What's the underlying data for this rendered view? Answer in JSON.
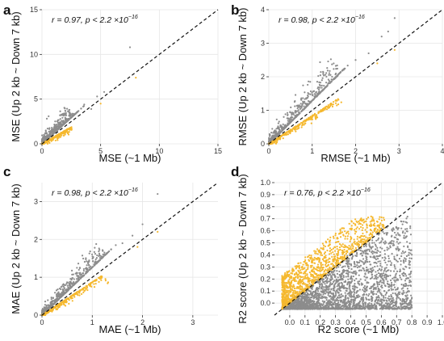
{
  "chart_data": [
    {
      "panel_label": "a",
      "type": "scatter",
      "xlabel": "MSE (~1 Mb)",
      "ylabel": "MSE (Up 2 kb ~ Down 7 kb)",
      "xlim": [
        0,
        15
      ],
      "ylim": [
        0,
        15
      ],
      "xticks": [
        "0",
        "5",
        "10",
        "15"
      ],
      "yticks": [
        "0",
        "5",
        "10",
        "15"
      ],
      "annotation": {
        "main": "r = 0.97, p < 2.2 ×10",
        "sup": "−16"
      },
      "reference_line": "dashed diagonal y = x",
      "grid": true,
      "series": [
        {
          "color": "#8c8c8c",
          "cloud_end": [
            2.8,
            3.3
          ],
          "spread": 0.55,
          "outliers": [
            [
              7.5,
              10.8
            ],
            [
              4.7,
              5.3
            ],
            [
              4.2,
              3.9
            ],
            [
              5.3,
              5.8
            ],
            [
              3.6,
              4.4
            ]
          ]
        },
        {
          "color": "#f5b82e",
          "cloud_end": [
            2.5,
            1.9
          ],
          "spread": 0.25,
          "outliers": [
            [
              8.0,
              7.4
            ],
            [
              5.0,
              4.5
            ]
          ]
        }
      ]
    },
    {
      "panel_label": "b",
      "type": "scatter",
      "xlabel": "RMSE (~1 Mb)",
      "ylabel": "RMSE (Up 2 kb ~ Down 7 kb)",
      "xlim": [
        0,
        4
      ],
      "ylim": [
        0,
        4
      ],
      "xticks": [
        "0",
        "1",
        "2",
        "3",
        "4"
      ],
      "yticks": [
        "0",
        "1",
        "2",
        "3",
        "4"
      ],
      "annotation": {
        "main": "r = 0.98, p < 2.2 ×10",
        "sup": "−16"
      },
      "reference_line": "dashed diagonal y = x",
      "grid": true,
      "series": [
        {
          "color": "#8c8c8c",
          "cloud_end": [
            1.7,
            2.2
          ],
          "spread": 0.22,
          "outliers": [
            [
              2.9,
              3.75
            ],
            [
              2.75,
              3.35
            ],
            [
              2.3,
              2.7
            ],
            [
              2.6,
              3.2
            ],
            [
              2.0,
              2.5
            ]
          ]
        },
        {
          "color": "#f5b82e",
          "cloud_end": [
            1.6,
            1.35
          ],
          "spread": 0.1,
          "outliers": [
            [
              2.9,
              2.8
            ],
            [
              2.5,
              2.4
            ]
          ]
        }
      ]
    },
    {
      "panel_label": "c",
      "type": "scatter",
      "xlabel": "MAE (~1 Mb)",
      "ylabel": "MAE (Up 2 kb ~ Down 7 kb)",
      "xlim": [
        0,
        3.5
      ],
      "ylim": [
        0,
        3.5
      ],
      "xticks": [
        "0",
        "1",
        "2",
        "3"
      ],
      "yticks": [
        "0",
        "1",
        "2",
        "3"
      ],
      "annotation": {
        "main": "r = 0.98, p < 2.2 ×10",
        "sup": "−16"
      },
      "reference_line": "dashed diagonal y = x",
      "grid": true,
      "series": [
        {
          "color": "#8c8c8c",
          "cloud_end": [
            1.3,
            1.65
          ],
          "spread": 0.16,
          "outliers": [
            [
              2.3,
              3.2
            ],
            [
              1.8,
              2.1
            ],
            [
              2.0,
              2.4
            ],
            [
              1.6,
              1.9
            ]
          ]
        },
        {
          "color": "#f5b82e",
          "cloud_end": [
            1.2,
            1.05
          ],
          "spread": 0.08,
          "outliers": [
            [
              2.3,
              2.2
            ],
            [
              1.9,
              1.8
            ]
          ]
        }
      ]
    },
    {
      "panel_label": "d",
      "type": "scatter",
      "xlabel": "R2 score (~1 Mb)",
      "ylabel": "R2 score (Up 2 kb ~ Down 7 kb)",
      "xlim": [
        -0.1,
        1.0
      ],
      "ylim": [
        -0.1,
        1.0
      ],
      "xticks": [
        "0.0",
        "0.1",
        "0.2",
        "0.3",
        "0.4",
        "0.5",
        "0.6",
        "0.7",
        "0.8",
        "0.9",
        "1.0"
      ],
      "yticks": [
        "0.0",
        "0.1",
        "0.2",
        "0.3",
        "0.4",
        "0.5",
        "0.6",
        "0.7",
        "0.8",
        "0.9",
        "1.0"
      ],
      "annotation": {
        "main": "r = 0.76, p < 2.2 ×10",
        "sup": "−16"
      },
      "reference_line": "dashed diagonal y = x",
      "grid": true,
      "series": [
        {
          "color": "#8c8c8c",
          "region": "below diagonal",
          "x_range": [
            -0.05,
            0.8
          ],
          "y_range": [
            -0.05,
            0.72
          ]
        },
        {
          "color": "#f5b82e",
          "region": "above diagonal",
          "x_range": [
            -0.05,
            0.62
          ],
          "y_range": [
            0.0,
            0.72
          ]
        }
      ]
    }
  ]
}
